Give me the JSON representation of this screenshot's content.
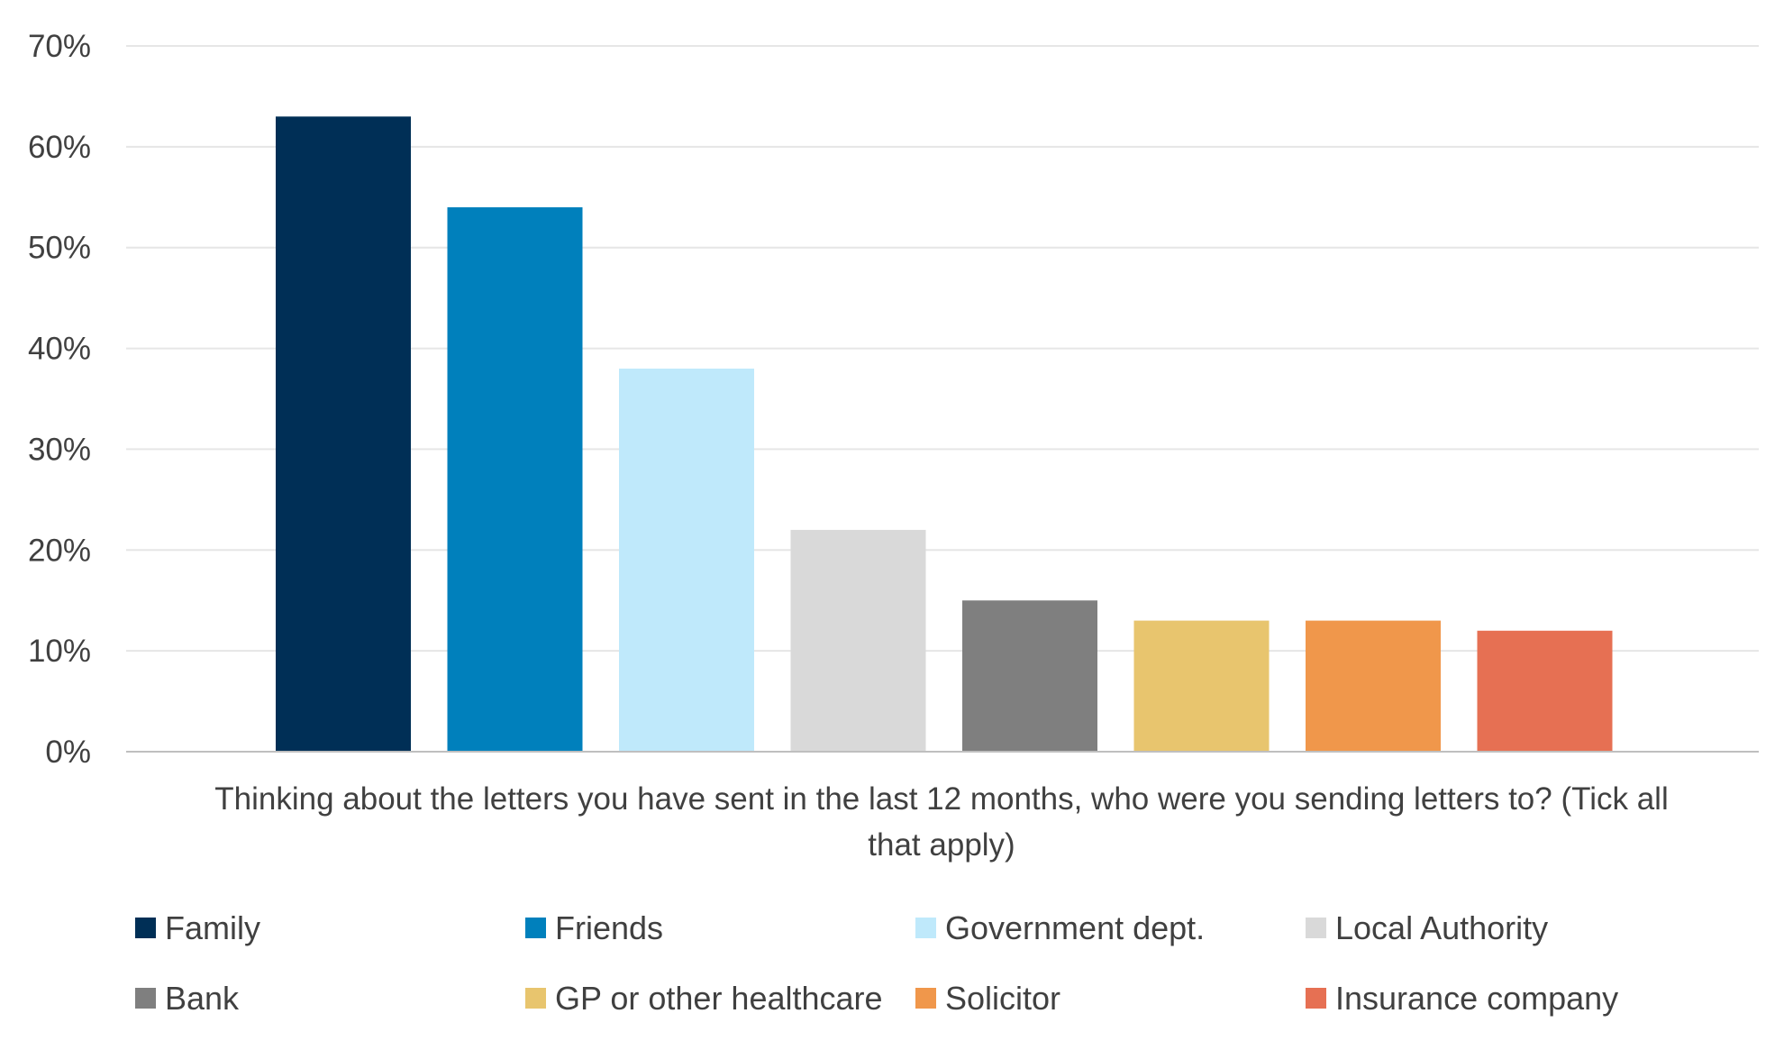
{
  "chart_data": {
    "type": "bar",
    "xlabel_lines": [
      "Thinking about the letters you have sent in the last 12 months, who were you sending letters to? (Tick all",
      "that apply)"
    ],
    "ylabel": "",
    "ylim": [
      0,
      70
    ],
    "yticks": [
      0,
      10,
      20,
      30,
      40,
      50,
      60,
      70
    ],
    "ytick_suffix": "%",
    "grid": true,
    "legend_position": "bottom",
    "series": [
      {
        "name": "Family",
        "value": 63,
        "color": "#002f56"
      },
      {
        "name": "Friends",
        "value": 54,
        "color": "#0080bc"
      },
      {
        "name": "Government dept.",
        "value": 38,
        "color": "#bfe9fb"
      },
      {
        "name": "Local Authority",
        "value": 22,
        "color": "#d9d9d9"
      },
      {
        "name": "Bank",
        "value": 15,
        "color": "#7f7f7f"
      },
      {
        "name": "GP or other healthcare",
        "value": 13,
        "color": "#e8c56e"
      },
      {
        "name": "Solicitor",
        "value": 13,
        "color": "#f0974b"
      },
      {
        "name": "Insurance company",
        "value": 12,
        "color": "#e67053"
      }
    ]
  }
}
